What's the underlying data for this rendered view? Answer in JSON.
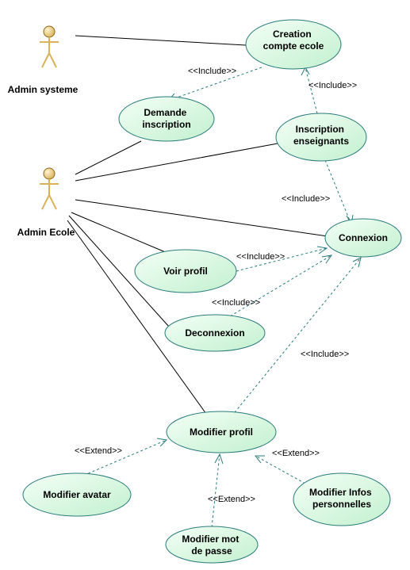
{
  "colors": {
    "usecase_fill_light": "#f4fff6",
    "usecase_fill_dark": "#c2f0cf",
    "usecase_stroke": "#2a7a7a",
    "actor_fill": "#d9b25a",
    "actor_stroke": "#8a6a20",
    "association_line": "#000000",
    "dependency_line": "#2a7a7a"
  },
  "actors": {
    "admin_systeme": {
      "label": "Admin systeme",
      "icon": "stick-figure"
    },
    "admin_ecole": {
      "label": "Admin Ecole",
      "icon": "stick-figure"
    }
  },
  "usecases": {
    "creation": {
      "lines": [
        "Creation",
        "compte ecole"
      ]
    },
    "demande": {
      "lines": [
        "Demande",
        "inscription"
      ]
    },
    "inscription_ens": {
      "lines": [
        "Inscription",
        "enseignants"
      ]
    },
    "connexion": {
      "lines": [
        "Connexion"
      ]
    },
    "voir_profil": {
      "lines": [
        "Voir profil"
      ]
    },
    "deconnexion": {
      "lines": [
        "Deconnexion"
      ]
    },
    "modifier_profil": {
      "lines": [
        "Modifier profil"
      ]
    },
    "modifier_avatar": {
      "lines": [
        "Modifier avatar"
      ]
    },
    "modifier_mdp": {
      "lines": [
        "Modifier mot",
        "de passe"
      ]
    },
    "modifier_infos": {
      "lines": [
        "Modifier Infos",
        "personnelles"
      ]
    }
  },
  "stereotypes": {
    "include": "<<Include>>",
    "extend": "<<Extend>>"
  }
}
